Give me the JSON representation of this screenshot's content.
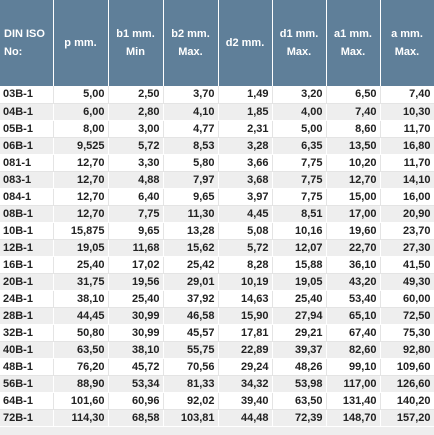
{
  "table": {
    "headers": [
      [
        "DIN ISO",
        "No:"
      ],
      [
        "p mm."
      ],
      [
        "b1 mm.",
        "Min"
      ],
      [
        "b2 mm.",
        "Max."
      ],
      [
        "d2 mm."
      ],
      [
        "d1 mm.",
        "Max."
      ],
      [
        "a1 mm.",
        "Max."
      ],
      [
        "a mm.",
        "Max."
      ]
    ],
    "rows": [
      [
        "03B-1",
        "5,00",
        "2,50",
        "3,70",
        "1,49",
        "3,20",
        "6,50",
        "7,40"
      ],
      [
        "04B-1",
        "6,00",
        "2,80",
        "4,10",
        "1,85",
        "4,00",
        "7,40",
        "10,30"
      ],
      [
        "05B-1",
        "8,00",
        "3,00",
        "4,77",
        "2,31",
        "5,00",
        "8,60",
        "11,70"
      ],
      [
        "06B-1",
        "9,525",
        "5,72",
        "8,53",
        "3,28",
        "6,35",
        "13,50",
        "16,80"
      ],
      [
        "081-1",
        "12,70",
        "3,30",
        "5,80",
        "3,66",
        "7,75",
        "10,20",
        "11,70"
      ],
      [
        "083-1",
        "12,70",
        "4,88",
        "7,97",
        "3,68",
        "7,75",
        "12,70",
        "14,10"
      ],
      [
        "084-1",
        "12,70",
        "6,40",
        "9,65",
        "3,97",
        "7,75",
        "15,00",
        "16,00"
      ],
      [
        "08B-1",
        "12,70",
        "7,75",
        "11,30",
        "4,45",
        "8,51",
        "17,00",
        "20,90"
      ],
      [
        "10B-1",
        "15,875",
        "9,65",
        "13,28",
        "5,08",
        "10,16",
        "19,60",
        "23,70"
      ],
      [
        "12B-1",
        "19,05",
        "11,68",
        "15,62",
        "5,72",
        "12,07",
        "22,70",
        "27,30"
      ],
      [
        "16B-1",
        "25,40",
        "17,02",
        "25,42",
        "8,28",
        "15,88",
        "36,10",
        "41,50"
      ],
      [
        "20B-1",
        "31,75",
        "19,56",
        "29,01",
        "10,19",
        "19,05",
        "43,20",
        "49,30"
      ],
      [
        "24B-1",
        "38,10",
        "25,40",
        "37,92",
        "14,63",
        "25,40",
        "53,40",
        "60,00"
      ],
      [
        "28B-1",
        "44,45",
        "30,99",
        "46,58",
        "15,90",
        "27,94",
        "65,10",
        "72,50"
      ],
      [
        "32B-1",
        "50,80",
        "30,99",
        "45,57",
        "17,81",
        "29,21",
        "67,40",
        "75,30"
      ],
      [
        "40B-1",
        "63,50",
        "38,10",
        "55,75",
        "22,89",
        "39,37",
        "82,60",
        "92,80"
      ],
      [
        "48B-1",
        "76,20",
        "45,72",
        "70,56",
        "29,24",
        "48,26",
        "99,10",
        "109,60"
      ],
      [
        "56B-1",
        "88,90",
        "53,34",
        "81,33",
        "34,32",
        "53,98",
        "117,00",
        "126,60"
      ],
      [
        "64B-1",
        "101,60",
        "60,96",
        "92,02",
        "39,40",
        "63,50",
        "131,40",
        "140,20"
      ],
      [
        "72B-1",
        "114,30",
        "68,58",
        "103,81",
        "44,48",
        "72,39",
        "148,70",
        "157,20"
      ]
    ]
  }
}
